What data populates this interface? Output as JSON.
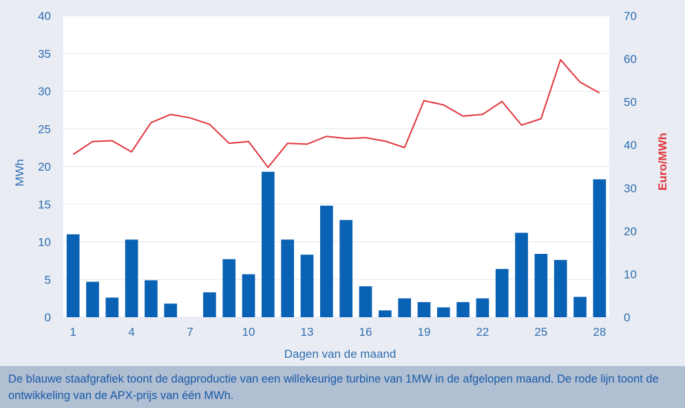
{
  "caption": "De blauwe staafgrafiek toont de dagproductie van een willekeurige turbine van 1MW in de afgelopen maand. De rode lijn toont de ontwikkeling van de APX-prijs van één MWh.",
  "chart_data": {
    "type": "bar+line",
    "xlabel": "Dagen van de maand",
    "ylabel_left": "MWh",
    "ylabel_right": "Euro/MWh",
    "ylim_left": [
      0,
      40
    ],
    "ylim_right": [
      0,
      70
    ],
    "yticks_left": [
      0,
      5,
      10,
      15,
      20,
      25,
      30,
      35,
      40
    ],
    "yticks_right": [
      0,
      10,
      20,
      30,
      40,
      50,
      60,
      70
    ],
    "xticks": [
      1,
      4,
      7,
      10,
      13,
      16,
      19,
      22,
      25,
      28
    ],
    "grid": "horizontal",
    "colors": {
      "bar": "#0a62b5",
      "line": "#e0353b",
      "left_axis": "#2e6cb0",
      "right_axis": "#e0353b"
    },
    "days": [
      1,
      2,
      3,
      4,
      5,
      6,
      7,
      8,
      9,
      10,
      11,
      12,
      13,
      14,
      15,
      16,
      17,
      18,
      19,
      20,
      21,
      22,
      23,
      24,
      25,
      26,
      27,
      28
    ],
    "series": [
      {
        "name": "MWh",
        "type": "bar",
        "axis": "left",
        "values": [
          11.0,
          4.7,
          2.6,
          10.3,
          4.9,
          1.8,
          0,
          3.3,
          7.7,
          5.7,
          19.3,
          10.3,
          8.3,
          14.8,
          12.9,
          4.1,
          0.9,
          2.5,
          2.0,
          1.3,
          2.0,
          2.5,
          6.4,
          11.2,
          8.4,
          7.6,
          2.7,
          18.3
        ]
      },
      {
        "name": "Euro/MWh",
        "type": "line",
        "axis": "right",
        "values": [
          37.8,
          40.8,
          41.0,
          38.4,
          45.2,
          47.1,
          46.3,
          44.8,
          40.4,
          40.8,
          34.8,
          40.4,
          40.2,
          42.0,
          41.5,
          41.7,
          40.9,
          39.4,
          50.3,
          49.3,
          46.7,
          47.1,
          50.1,
          44.6,
          46.1,
          59.8,
          54.6,
          52.1
        ]
      }
    ]
  }
}
